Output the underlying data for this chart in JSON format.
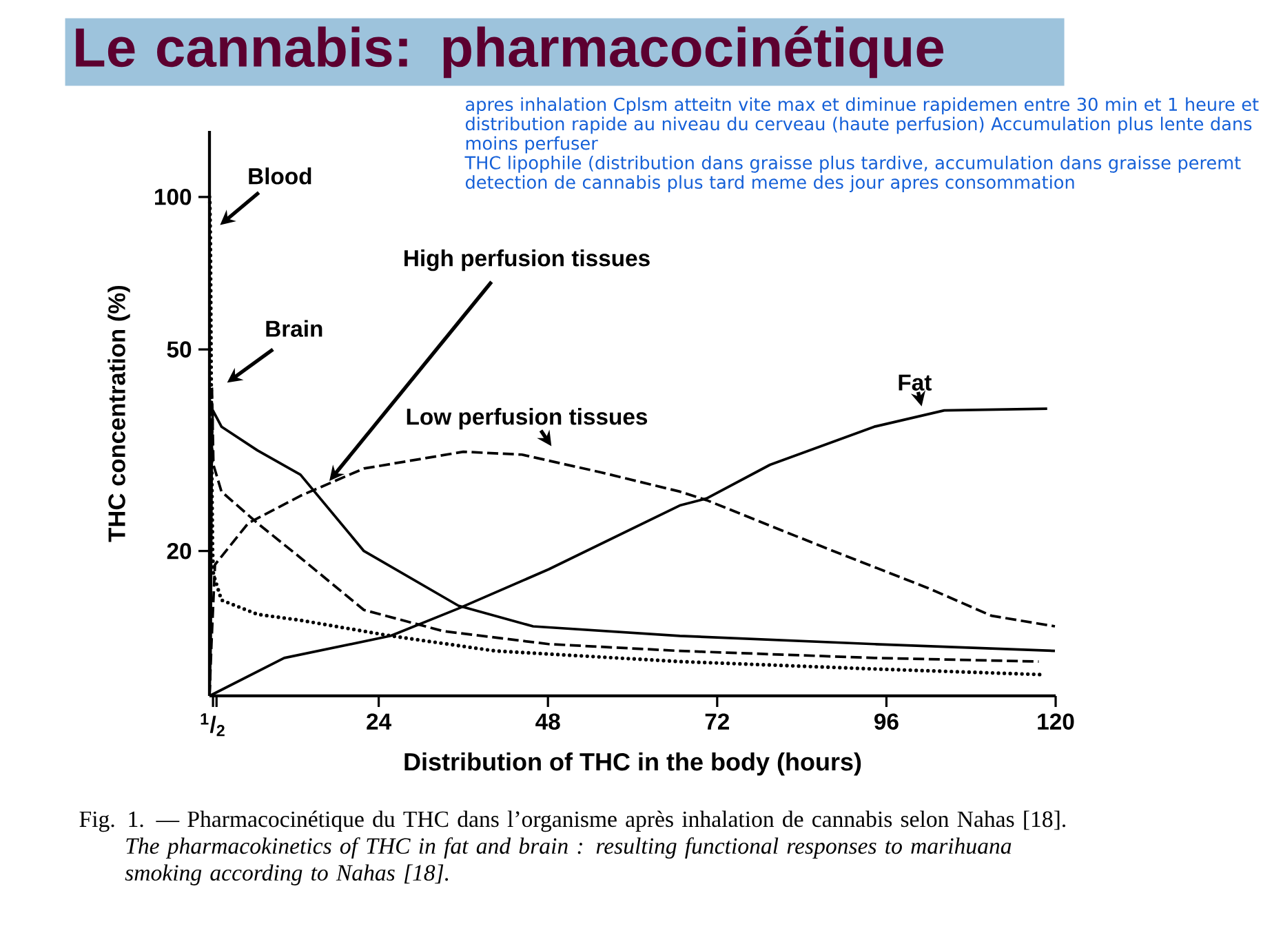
{
  "chart_data": {
    "type": "line",
    "title": "Le cannabis: pharmacocinétique",
    "xlabel": "Distribution of THC in the body (hours)",
    "ylabel": "THC concentration (%)",
    "log": "y",
    "marker": "none",
    "xlim": [
      0,
      120
    ],
    "xticks": [
      {
        "value": 0.5,
        "label": "$^{1}$/$_{2}$"
      },
      {
        "value": 1,
        "label": null
      },
      24,
      48,
      72,
      96,
      120
    ],
    "ylim": [
      10.35,
      135
    ],
    "yticks": [
      20,
      50,
      100
    ],
    "series": [
      {
        "name": "Blood",
        "color": "#000000",
        "line_style": "dotted",
        "x": [
          0,
          0.04,
          0.13,
          0.17,
          0.25,
          0.29,
          0.37,
          0.44,
          0.56,
          1.7,
          6.8,
          12.9,
          25.7,
          40.5,
          66.7,
          94.3,
          118.4
        ],
        "values": [
          100,
          100,
          83,
          67,
          42,
          35,
          25,
          20,
          18,
          16,
          15,
          14.6,
          13.6,
          12.7,
          12.1,
          11.7,
          11.4
        ]
      },
      {
        "name": "Brain",
        "color": "#000000",
        "line_style": "dashed",
        "x": [
          0,
          0.11,
          0.145,
          0.15,
          0.16,
          0.18,
          0.24,
          0.35,
          0.56,
          1.7,
          6.8,
          12.9,
          21.9,
          33.1,
          48.1,
          66.7,
          94.3,
          117.6
        ],
        "values": [
          10.35,
          11.6,
          14.6,
          20,
          30.4,
          36.7,
          42.4,
          41.9,
          29.6,
          26.2,
          22.7,
          19.4,
          15.3,
          13.9,
          13.1,
          12.7,
          12.3,
          12.1
        ]
      },
      {
        "name": "High perfusion tissues",
        "color": "#000000",
        "line_style": "solid",
        "x": [
          0,
          0.18,
          0.24,
          0.3,
          0.35,
          0.44,
          0.48,
          1.7,
          6.8,
          12.9,
          21.9,
          35.3,
          45.9,
          66.7,
          94.3,
          119.9
        ],
        "values": [
          10.35,
          13.1,
          20,
          27.4,
          33,
          36.7,
          37.9,
          35.2,
          31.6,
          28.3,
          20,
          15.6,
          14.2,
          13.6,
          13.1,
          12.7
        ]
      },
      {
        "name": "Low perfusion tissues",
        "color": "#000000",
        "line_style": "dashed",
        "x": [
          0,
          0.28,
          0.78,
          5.5,
          12.9,
          21.9,
          36,
          44.3,
          55.5,
          66.7,
          70.5,
          86.9,
          101.9,
          110.9,
          119.9
        ],
        "values": [
          10.35,
          13.1,
          18.8,
          22.7,
          25.7,
          29.1,
          31.4,
          31,
          28.6,
          26.2,
          25.2,
          20.4,
          16.9,
          14.9,
          14.2
        ]
      },
      {
        "name": "Fat",
        "color": "#000000",
        "line_style": "solid",
        "x": [
          0,
          10.6,
          25.7,
          35.3,
          48.1,
          66.7,
          70.5,
          79.5,
          94.3,
          104.2,
          118.8
        ],
        "values": [
          10.35,
          12.3,
          13.6,
          15.4,
          18.4,
          24.6,
          25.4,
          29.6,
          35.2,
          37.9,
          38.2
        ]
      }
    ],
    "annotations": [
      "apres inhalation Cplsm atteitn vite max et diminue rapidemen entre 30 min et 1 heure et distribution rapide au niveau du cerveau (haute perfusion) Accumulation plus lente dans moins perfuser",
      "THC lipophile (distribution dans graisse plus tardive, accumulation dans graisse peremt detection de cannabis plus tard meme des jour apres consommation",
      "Fig. 1. — Pharmacocinétique du THC dans l’organisme après inhalation de cannabis selon Nahas [18].",
      "The pharmacokinetics of THC in fat and brain : resulting functional responses to marihuana smoking according to Nahas [18]."
    ]
  }
}
